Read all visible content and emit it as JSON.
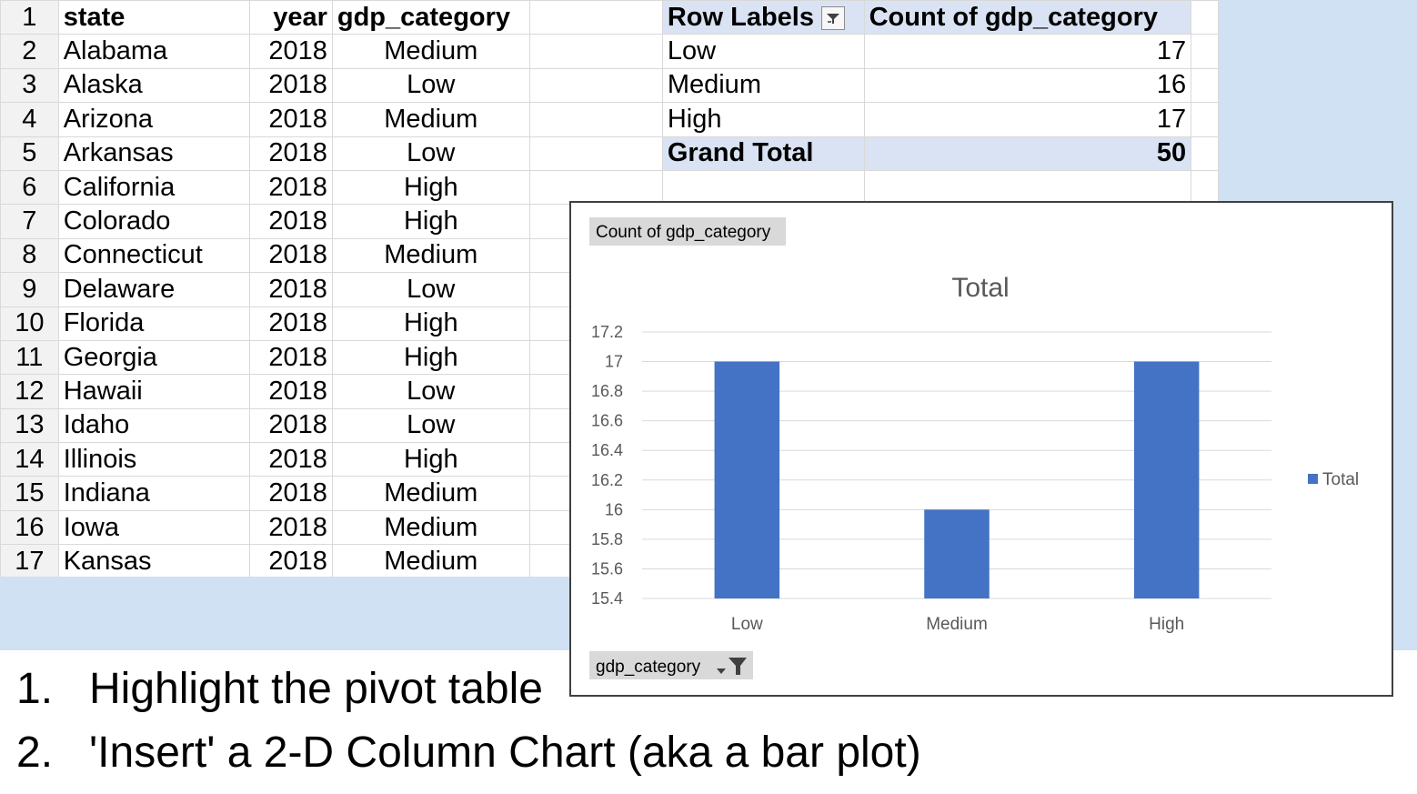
{
  "sheet": {
    "header": {
      "row": "1",
      "state": "state",
      "year": "year",
      "category": "gdp_category"
    },
    "rows": [
      {
        "row": "2",
        "state": "Alabama",
        "year": "2018",
        "category": "Medium"
      },
      {
        "row": "3",
        "state": "Alaska",
        "year": "2018",
        "category": "Low"
      },
      {
        "row": "4",
        "state": "Arizona",
        "year": "2018",
        "category": "Medium"
      },
      {
        "row": "5",
        "state": "Arkansas",
        "year": "2018",
        "category": "Low"
      },
      {
        "row": "6",
        "state": "California",
        "year": "2018",
        "category": "High"
      },
      {
        "row": "7",
        "state": "Colorado",
        "year": "2018",
        "category": "High"
      },
      {
        "row": "8",
        "state": "Connecticut",
        "year": "2018",
        "category": "Medium"
      },
      {
        "row": "9",
        "state": "Delaware",
        "year": "2018",
        "category": "Low"
      },
      {
        "row": "10",
        "state": "Florida",
        "year": "2018",
        "category": "High"
      },
      {
        "row": "11",
        "state": "Georgia",
        "year": "2018",
        "category": "High"
      },
      {
        "row": "12",
        "state": "Hawaii",
        "year": "2018",
        "category": "Low"
      },
      {
        "row": "13",
        "state": "Idaho",
        "year": "2018",
        "category": "Low"
      },
      {
        "row": "14",
        "state": "Illinois",
        "year": "2018",
        "category": "High"
      },
      {
        "row": "15",
        "state": "Indiana",
        "year": "2018",
        "category": "Medium"
      },
      {
        "row": "16",
        "state": "Iowa",
        "year": "2018",
        "category": "Medium"
      },
      {
        "row": "17",
        "state": "Kansas",
        "year": "2018",
        "category": "Medium"
      }
    ]
  },
  "pivot": {
    "row_labels_header": "Row Labels",
    "count_header": "Count of gdp_category",
    "rows": [
      {
        "label": "Low",
        "count": "17"
      },
      {
        "label": "Medium",
        "count": "16"
      },
      {
        "label": "High",
        "count": "17"
      }
    ],
    "grand_total_label": "Grand Total",
    "grand_total_value": "50",
    "filter_icon": "filter-dropdown-icon"
  },
  "chart": {
    "field_button_label": "Count of gdp_category",
    "axis_field_button_label": "gdp_category",
    "axis_field_icon": "filter-dropdown-icon",
    "legend_label": "Total",
    "bar_color": "#4472c4"
  },
  "chart_data": {
    "type": "bar",
    "title": "Total",
    "categories": [
      "Low",
      "Medium",
      "High"
    ],
    "series": [
      {
        "name": "Total",
        "values": [
          17,
          16,
          17
        ]
      }
    ],
    "ylim": [
      15.4,
      17.2
    ],
    "yticks": [
      "17.2",
      "17",
      "16.8",
      "16.6",
      "16.4",
      "16.2",
      "16",
      "15.8",
      "15.6",
      "15.4"
    ],
    "xlabel": "",
    "ylabel": "",
    "grid": true,
    "legend": "right"
  },
  "steps": [
    {
      "num": "1.",
      "text": "Highlight the pivot table"
    },
    {
      "num": "2.",
      "text": "'Insert' a 2-D Column Chart (aka a bar plot)"
    }
  ]
}
